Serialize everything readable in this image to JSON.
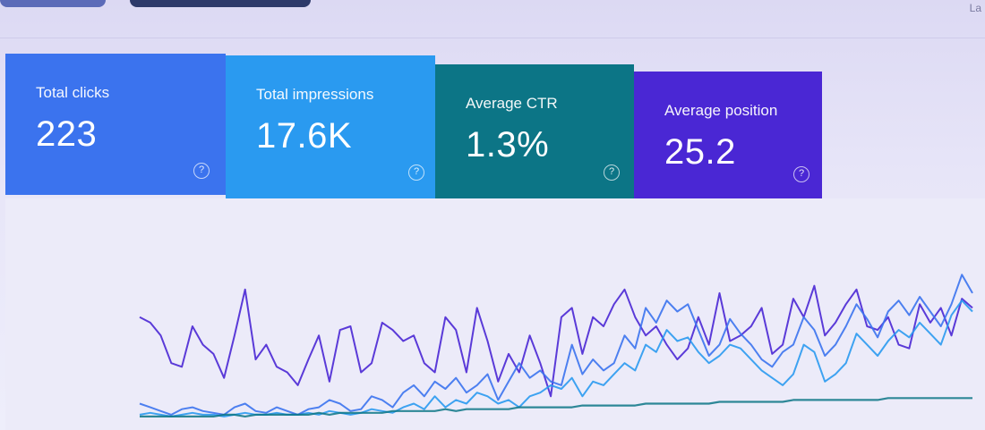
{
  "header": {
    "corner_label": "La"
  },
  "metrics": {
    "clicks": {
      "label": "Total clicks",
      "value": "223",
      "help": "?"
    },
    "impressions": {
      "label": "Total impressions",
      "value": "17.6K",
      "help": "?"
    },
    "ctr": {
      "label": "Average CTR",
      "value": "1.3%",
      "help": "?"
    },
    "position": {
      "label": "Average position",
      "value": "25.2",
      "help": "?"
    }
  },
  "colors": {
    "clicks": "#3b73ee",
    "impressions": "#2a9af0",
    "ctr": "#0c7586",
    "position": "#4a27d4"
  },
  "chart_data": {
    "type": "line",
    "title": "",
    "xlabel": "",
    "ylabel": "",
    "x": [
      0,
      1,
      2,
      3,
      4,
      5,
      6,
      7,
      8,
      9,
      10,
      11,
      12,
      13,
      14,
      15,
      16,
      17,
      18,
      19,
      20,
      21,
      22,
      23,
      24,
      25,
      26,
      27,
      28,
      29,
      30,
      31,
      32,
      33,
      34,
      35,
      36,
      37,
      38,
      39,
      40,
      41,
      42,
      43,
      44,
      45,
      46,
      47,
      48,
      49,
      50,
      51,
      52,
      53,
      54,
      55,
      56,
      57,
      58,
      59,
      60,
      61,
      62,
      63,
      64,
      65,
      66,
      67,
      68,
      69,
      70,
      71,
      72,
      73,
      74,
      75,
      76,
      77,
      78,
      79
    ],
    "ylim": [
      0,
      100
    ],
    "series": [
      {
        "values": [
          55,
          52,
          45,
          30,
          28,
          50,
          40,
          35,
          22,
          45,
          70,
          32,
          40,
          28,
          25,
          18,
          32,
          45,
          20,
          48,
          50,
          25,
          30,
          52,
          48,
          42,
          45,
          30,
          25,
          55,
          48,
          25,
          60,
          42,
          20,
          35,
          25,
          45,
          30,
          12,
          55,
          60,
          35,
          55,
          50,
          62,
          70,
          55,
          45,
          50,
          40,
          32,
          38,
          55,
          40,
          68,
          42,
          45,
          50,
          60,
          35,
          40,
          65,
          55,
          72,
          45,
          52,
          62,
          70,
          50,
          48,
          55,
          40,
          38,
          62,
          52,
          60,
          45,
          65,
          60
        ]
      },
      {
        "values": [
          2,
          3,
          2,
          1,
          2,
          3,
          2,
          2,
          1,
          2,
          3,
          2,
          2,
          3,
          2,
          2,
          3,
          2,
          4,
          3,
          2,
          3,
          5,
          4,
          3,
          6,
          8,
          5,
          12,
          6,
          10,
          8,
          14,
          12,
          8,
          10,
          6,
          12,
          14,
          18,
          16,
          22,
          12,
          20,
          18,
          24,
          30,
          26,
          40,
          36,
          48,
          42,
          44,
          36,
          30,
          34,
          40,
          38,
          32,
          26,
          22,
          18,
          24,
          40,
          36,
          20,
          24,
          30,
          46,
          40,
          34,
          42,
          48,
          44,
          52,
          46,
          40,
          56,
          64,
          58
        ]
      },
      {
        "values": [
          8,
          6,
          4,
          2,
          5,
          6,
          4,
          3,
          2,
          6,
          8,
          4,
          3,
          6,
          4,
          2,
          5,
          6,
          10,
          8,
          4,
          5,
          12,
          10,
          6,
          14,
          18,
          12,
          20,
          16,
          22,
          14,
          18,
          24,
          10,
          20,
          30,
          22,
          26,
          20,
          18,
          40,
          24,
          32,
          26,
          30,
          45,
          38,
          60,
          52,
          64,
          58,
          62,
          48,
          34,
          40,
          54,
          46,
          40,
          32,
          28,
          36,
          40,
          55,
          48,
          34,
          40,
          50,
          62,
          54,
          44,
          58,
          64,
          56,
          66,
          58,
          50,
          62,
          78,
          68
        ]
      },
      {
        "values": [
          1,
          1,
          1,
          1,
          1,
          1,
          1,
          1,
          2,
          2,
          1,
          2,
          2,
          2,
          2,
          2,
          2,
          3,
          2,
          3,
          3,
          3,
          3,
          3,
          4,
          4,
          4,
          4,
          4,
          5,
          4,
          5,
          5,
          5,
          5,
          5,
          6,
          6,
          6,
          6,
          6,
          6,
          7,
          7,
          7,
          7,
          7,
          7,
          8,
          8,
          8,
          8,
          8,
          8,
          8,
          9,
          9,
          9,
          9,
          9,
          9,
          9,
          10,
          10,
          10,
          10,
          10,
          10,
          10,
          10,
          10,
          11,
          11,
          11,
          11,
          11,
          11,
          11,
          11,
          11
        ]
      }
    ]
  }
}
